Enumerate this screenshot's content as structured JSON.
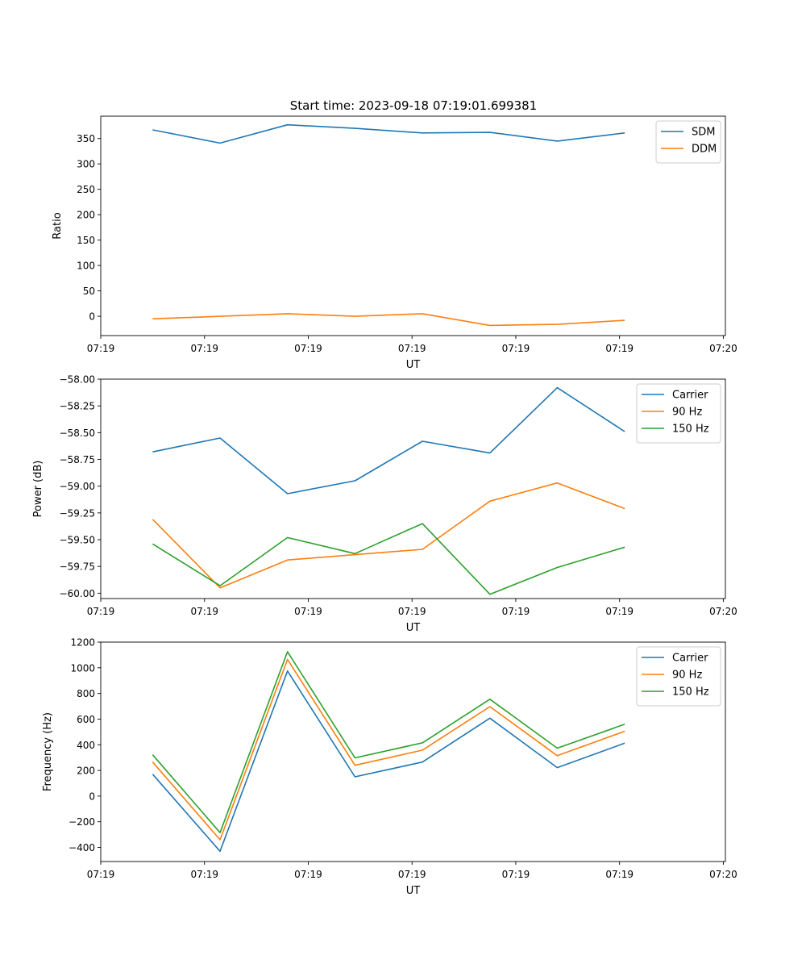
{
  "figure_title": "Start time: 2023-09-18 07:19:01.699381",
  "chart_data": [
    {
      "type": "line",
      "title": "Start time: 2023-09-18 07:19:01.699381",
      "xlabel": "UT",
      "ylabel": "Ratio",
      "x": [
        0.5,
        1.15,
        1.8,
        2.45,
        3.1,
        3.75,
        4.4,
        5.05
      ],
      "xlim": [
        0,
        6.02
      ],
      "xticks": [
        0,
        1,
        2,
        3,
        4,
        5,
        6
      ],
      "xtick_labels": [
        "07:19",
        "07:19",
        "07:19",
        "07:19",
        "07:19",
        "07:19",
        "07:20"
      ],
      "ylim": [
        -38,
        394
      ],
      "yticks": [
        0,
        50,
        100,
        150,
        200,
        250,
        300,
        350
      ],
      "ytick_labels": [
        "0",
        "50",
        "100",
        "150",
        "200",
        "250",
        "300",
        "350"
      ],
      "legend_position": "top-right",
      "series": [
        {
          "name": "SDM",
          "color": "#1f77b4",
          "values": [
            367,
            341,
            377,
            370,
            361,
            362,
            345,
            361
          ]
        },
        {
          "name": "DDM",
          "color": "#ff7f0e",
          "values": [
            -5,
            0,
            5,
            0,
            5,
            -18,
            -16,
            -8
          ]
        }
      ]
    },
    {
      "type": "line",
      "xlabel": "UT",
      "ylabel": "Power (dB)",
      "x": [
        0.5,
        1.15,
        1.8,
        2.45,
        3.1,
        3.75,
        4.4,
        5.05
      ],
      "xlim": [
        0,
        6.02
      ],
      "xticks": [
        0,
        1,
        2,
        3,
        4,
        5,
        6
      ],
      "xtick_labels": [
        "07:19",
        "07:19",
        "07:19",
        "07:19",
        "07:19",
        "07:19",
        "07:20"
      ],
      "ylim": [
        -60.05,
        -58.0
      ],
      "yticks": [
        -60.0,
        -59.75,
        -59.5,
        -59.25,
        -59.0,
        -58.75,
        -58.5,
        -58.25,
        -58.0
      ],
      "ytick_labels": [
        "−60.00",
        "−59.75",
        "−59.50",
        "−59.25",
        "−59.00",
        "−58.75",
        "−58.50",
        "−58.25",
        "−58.00"
      ],
      "legend_position": "top-right",
      "series": [
        {
          "name": "Carrier",
          "color": "#1f77b4",
          "values": [
            -58.68,
            -58.55,
            -59.07,
            -58.95,
            -58.58,
            -58.69,
            -58.08,
            -58.49
          ]
        },
        {
          "name": "90 Hz",
          "color": "#ff7f0e",
          "values": [
            -59.31,
            -59.95,
            -59.69,
            -59.64,
            -59.59,
            -59.14,
            -58.97,
            -59.21
          ]
        },
        {
          "name": "150 Hz",
          "color": "#2ca02c",
          "values": [
            -59.54,
            -59.93,
            -59.48,
            -59.63,
            -59.35,
            -60.01,
            -59.76,
            -59.57
          ]
        }
      ]
    },
    {
      "type": "line",
      "xlabel": "UT",
      "ylabel": "Frequency (Hz)",
      "x": [
        0.5,
        1.15,
        1.8,
        2.45,
        3.1,
        3.75,
        4.4,
        5.05
      ],
      "xlim": [
        0,
        6.02
      ],
      "xticks": [
        0,
        1,
        2,
        3,
        4,
        5,
        6
      ],
      "xtick_labels": [
        "07:19",
        "07:19",
        "07:19",
        "07:19",
        "07:19",
        "07:19",
        "07:20"
      ],
      "ylim": [
        -510,
        1200
      ],
      "yticks": [
        -400,
        -200,
        0,
        200,
        400,
        600,
        800,
        1000,
        1200
      ],
      "ytick_labels": [
        "−400",
        "−200",
        "0",
        "200",
        "400",
        "600",
        "800",
        "1000",
        "1200"
      ],
      "legend_position": "top-right",
      "series": [
        {
          "name": "Carrier",
          "color": "#1f77b4",
          "values": [
            170,
            -430,
            975,
            150,
            265,
            607,
            222,
            412
          ]
        },
        {
          "name": "90 Hz",
          "color": "#ff7f0e",
          "values": [
            265,
            -340,
            1065,
            240,
            358,
            697,
            315,
            505
          ]
        },
        {
          "name": "150 Hz",
          "color": "#2ca02c",
          "values": [
            322,
            -285,
            1125,
            298,
            415,
            755,
            373,
            560
          ]
        }
      ]
    }
  ]
}
